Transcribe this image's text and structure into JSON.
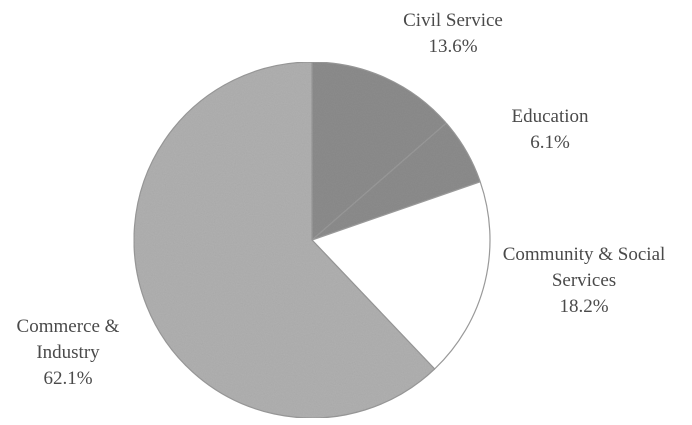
{
  "chart_data": {
    "type": "pie",
    "title": "",
    "slices": [
      {
        "label_lines": [
          "Civil Service"
        ],
        "value_label": "13.6%",
        "value": 13.6,
        "color": "#8c8c8c"
      },
      {
        "label_lines": [
          "Education"
        ],
        "value_label": "6.1%",
        "value": 6.1,
        "color": "#8c8c8c"
      },
      {
        "label_lines": [
          "Community & Social",
          "Services"
        ],
        "value_label": "18.2%",
        "value": 18.2,
        "color": "#ffffff"
      },
      {
        "label_lines": [
          "Commerce &",
          "Industry"
        ],
        "value_label": "62.1%",
        "value": 62.1,
        "color": "#b0b0b0"
      }
    ],
    "legend": "none",
    "outline_color": "#999999"
  }
}
